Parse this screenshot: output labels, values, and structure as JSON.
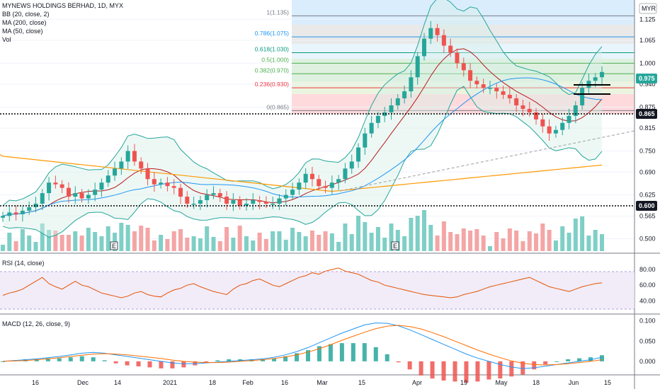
{
  "header": {
    "symbol_line": "MYNEWS HOLDINGS BERHAD, 1D, MYX",
    "currency": "MYR",
    "indicators": [
      "BB (20, close, 2)",
      "MA (200, close)",
      "MA (50, close)",
      "Vol"
    ]
  },
  "panes": {
    "rsi_label": "RSI (14, close)",
    "macd_label": "MACD (12, 26, close, 9)"
  },
  "chart_data": {
    "type": "candlestick",
    "price_axis_ticks": [
      "1.125",
      "1.065",
      "1.000",
      "0.940",
      "0.875",
      "0.815",
      "0.750",
      "0.690",
      "0.625",
      "0.565",
      "0.500"
    ],
    "price_axis_values": [
      1.125,
      1.065,
      1.0,
      0.94,
      0.875,
      0.815,
      0.75,
      0.69,
      0.625,
      0.565,
      0.5
    ],
    "price_range": [
      0.465,
      1.18
    ],
    "last_price": "0.975",
    "support_level": "0.600",
    "resistance_level": "0.865",
    "fib_levels": [
      {
        "label": "1(1.135)",
        "value": 1.135,
        "color": "#787b86"
      },
      {
        "label": "0.786(1.075)",
        "value": 1.075,
        "color": "#2196f3"
      },
      {
        "label": "0.618(1.030)",
        "value": 1.03,
        "color": "#089981"
      },
      {
        "label": "0.5(1.000)",
        "value": 1.0,
        "color": "#4caf50"
      },
      {
        "label": "0.382(0.970)",
        "value": 0.97,
        "color": "#4caf50"
      },
      {
        "label": "0.236(0.930)",
        "value": 0.93,
        "color": "#f23645"
      },
      {
        "label": "0(0.865)",
        "value": 0.865,
        "color": "#787b86"
      }
    ],
    "x_ticks": [
      "16",
      "Dec",
      "14",
      "2021",
      "18",
      "Feb",
      "16",
      "Mar",
      "15",
      "Apr",
      "19",
      "May",
      "18",
      "Jun",
      "15"
    ],
    "earnings_markers": [
      "E",
      "E"
    ],
    "rsi_ticks": [
      "80.00",
      "60.00",
      "40.00"
    ],
    "macd_ticks": [
      "0.100",
      "0.050",
      "0.000"
    ],
    "price_series": [
      0.565,
      0.575,
      0.57,
      0.58,
      0.59,
      0.6,
      0.63,
      0.66,
      0.655,
      0.645,
      0.62,
      0.63,
      0.615,
      0.625,
      0.64,
      0.66,
      0.68,
      0.7,
      0.72,
      0.75,
      0.72,
      0.7,
      0.67,
      0.655,
      0.66,
      0.65,
      0.645,
      0.62,
      0.6,
      0.6,
      0.61,
      0.625,
      0.63,
      0.62,
      0.6,
      0.61,
      0.595,
      0.6,
      0.61,
      0.605,
      0.6,
      0.6,
      0.615,
      0.625,
      0.64,
      0.66,
      0.685,
      0.67,
      0.65,
      0.645,
      0.66,
      0.67,
      0.7,
      0.72,
      0.76,
      0.8,
      0.83,
      0.85,
      0.86,
      0.88,
      0.9,
      0.92,
      0.96,
      1.02,
      1.07,
      1.1,
      1.08,
      1.05,
      1.03,
      1.0,
      0.98,
      0.95,
      0.94,
      0.93,
      0.93,
      0.92,
      0.91,
      0.9,
      0.88,
      0.87,
      0.86,
      0.84,
      0.82,
      0.8,
      0.81,
      0.83,
      0.85,
      0.88,
      0.93,
      0.95,
      0.96,
      0.975
    ],
    "rsi_series": [
      47,
      50,
      52,
      55,
      60,
      65,
      70,
      62,
      58,
      55,
      60,
      65,
      60,
      58,
      54,
      50,
      48,
      46,
      44,
      46,
      50,
      52,
      48,
      46,
      45,
      50,
      54,
      56,
      60,
      62,
      58,
      55,
      52,
      50,
      48,
      55,
      60,
      62,
      66,
      68,
      64,
      60,
      58,
      62,
      66,
      70,
      72,
      76,
      74,
      78,
      80,
      82,
      78,
      76,
      74,
      70,
      66,
      64,
      60,
      58,
      56,
      54,
      52,
      50,
      48,
      47,
      46,
      45,
      44,
      45,
      48,
      50,
      52,
      55,
      58,
      60,
      62,
      64,
      66,
      68,
      70,
      66,
      62,
      58,
      56,
      54,
      52,
      55,
      58,
      60,
      62,
      63
    ],
    "macd_series": [
      0.0,
      0.002,
      0.004,
      0.006,
      0.009,
      0.012,
      0.016,
      0.02,
      0.022,
      0.02,
      0.016,
      0.012,
      0.008,
      0.004,
      0.0,
      -0.004,
      -0.006,
      -0.006,
      -0.004,
      -0.002,
      0.0,
      0.002,
      0.004,
      0.006,
      0.01,
      0.016,
      0.024,
      0.034,
      0.046,
      0.058,
      0.07,
      0.08,
      0.09,
      0.095,
      0.094,
      0.088,
      0.078,
      0.066,
      0.054,
      0.042,
      0.03,
      0.018,
      0.008,
      0.0,
      -0.008,
      -0.014,
      -0.018,
      -0.016,
      -0.012,
      -0.008,
      -0.004,
      0.0,
      0.004,
      0.01
    ],
    "signal_series": [
      0.0,
      0.001,
      0.002,
      0.004,
      0.006,
      0.009,
      0.012,
      0.015,
      0.018,
      0.019,
      0.018,
      0.016,
      0.013,
      0.01,
      0.007,
      0.003,
      0.0,
      -0.002,
      -0.003,
      -0.003,
      -0.002,
      0.0,
      0.002,
      0.004,
      0.007,
      0.011,
      0.016,
      0.023,
      0.031,
      0.041,
      0.052,
      0.062,
      0.072,
      0.081,
      0.087,
      0.089,
      0.086,
      0.08,
      0.071,
      0.061,
      0.05,
      0.039,
      0.028,
      0.018,
      0.009,
      0.001,
      -0.005,
      -0.008,
      -0.009,
      -0.008,
      -0.006,
      -0.003,
      0.0,
      0.004
    ]
  }
}
